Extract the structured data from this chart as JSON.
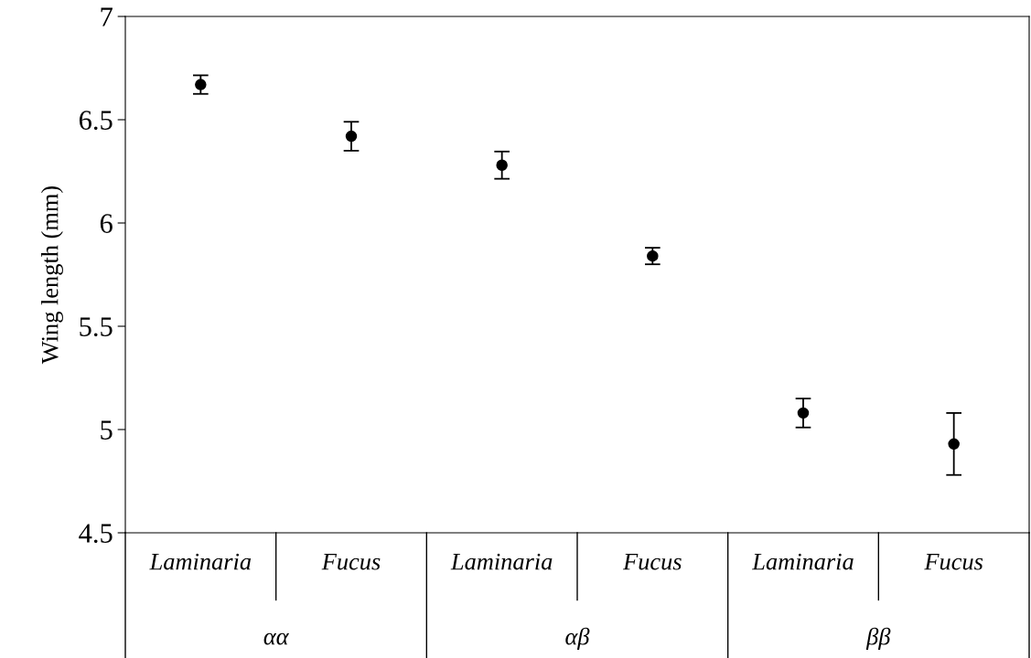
{
  "chart_data": {
    "type": "scatter",
    "ylabel": "Wing length (mm)",
    "categories": [
      "Laminaria",
      "Fucus",
      "Laminaria",
      "Fucus",
      "Laminaria",
      "Fucus"
    ],
    "values": [
      6.67,
      6.42,
      6.28,
      5.84,
      5.08,
      4.93
    ],
    "errors": [
      0.045,
      0.07,
      0.066,
      0.04,
      0.07,
      0.15
    ],
    "color": "#000000",
    "marker": "circle",
    "ylim": [
      4.5,
      7
    ],
    "yticks": [
      4.5,
      5,
      5.5,
      6,
      6.5,
      7
    ],
    "grid": false,
    "annotations": [
      "αα",
      "αβ",
      "ββ"
    ]
  }
}
